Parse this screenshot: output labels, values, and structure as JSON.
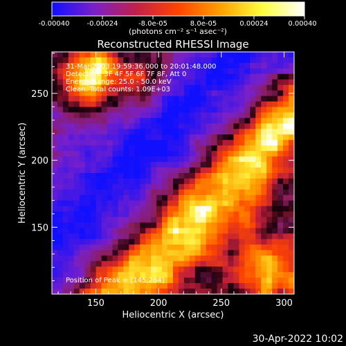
{
  "chart_data": {
    "type": "heatmap",
    "title": "Reconstructed RHESSI Image",
    "xlabel": "Heliocentric X (arcsec)",
    "ylabel": "Heliocentric Y (arcsec)",
    "xlim": [
      115,
      308
    ],
    "ylim": [
      100,
      281
    ],
    "xticks": [
      150,
      200,
      250,
      300
    ],
    "yticks": [
      150,
      200,
      250
    ],
    "colorbar": {
      "range": [
        -0.0004,
        0.0004
      ],
      "ticks": [
        "-0.00040",
        "-0.00024",
        "-8.0e-05",
        "8.0e-05",
        "0.00024",
        "0.00040"
      ],
      "label": "(photons cm⁻² s⁻¹ asec⁻²)",
      "colors": [
        "#1010ff",
        "#7a20c8",
        "#c0204a",
        "#ff4400",
        "#ffa000",
        "#ffff40",
        "#ffffff"
      ]
    },
    "annotations": [
      "31-Mar-2003 19:59:36.000 to 20:01:48.000",
      "Detectors: 3F 4F 5F 6F 7F 8F, Att 0",
      "Energy Range: 25.0 - 50.0 keV",
      "Clean. Total counts: 1.09E+03"
    ],
    "peak_label": "Position of Peak = [145,264]",
    "peak": [
      145,
      264
    ],
    "grid": false
  },
  "footer": {
    "timestamp": "30-Apr-2022 10:02"
  }
}
